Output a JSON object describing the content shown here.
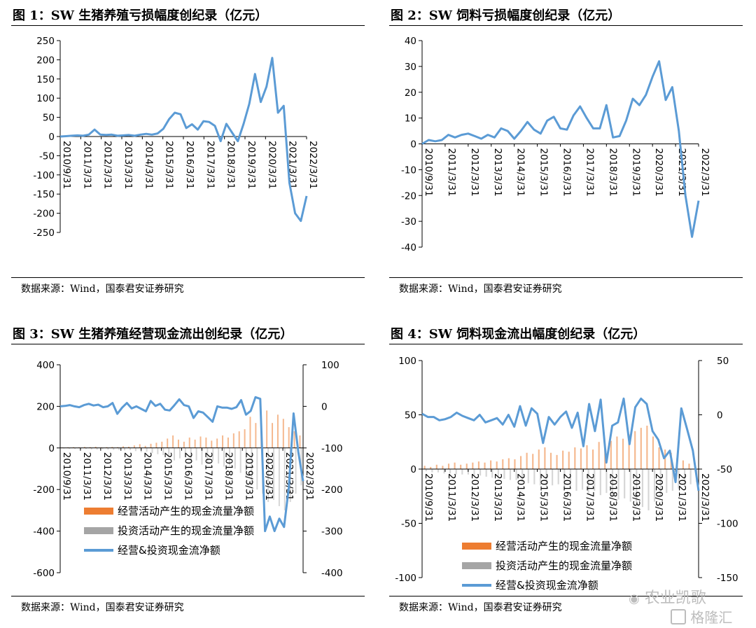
{
  "charts": [
    {
      "title": "图 1：SW 生猪养殖亏损幅度创纪录（亿元）",
      "source": "数据来源：Wind，国泰君安证券研究"
    },
    {
      "title": "图 2：SW 饲料亏损幅度创纪录（亿元）",
      "source": "数据来源：Wind，国泰君安证券研究"
    },
    {
      "title": "图 3：SW 生猪养殖经营现金流出创纪录（亿元）",
      "source": "数据来源：Wind，国泰君安证券研究"
    },
    {
      "title": "图 4：SW 饲料现金流出幅度创纪录（亿元）",
      "source": "数据来源：Wind，国泰君安证券研究"
    }
  ],
  "watermark": {
    "wechat": "农业凯歌",
    "gelonghui": "格隆汇"
  },
  "colors": {
    "line": "#5b9bd5",
    "operating_bar": "#ed7d31",
    "investing_bar": "#a5a5a5",
    "axis": "#000000"
  },
  "chart_data": [
    {
      "type": "line",
      "x_tick_labels": [
        "2010/9/31",
        "2011/3/31",
        "2012/3/31",
        "2013/3/31",
        "2014/3/31",
        "2015/3/31",
        "2016/3/31",
        "2017/3/31",
        "2018/3/31",
        "2019/3/31",
        "2020/3/31",
        "2021/3/31",
        "2022/3/31"
      ],
      "ylim": [
        -250,
        250
      ],
      "yticks": [
        250,
        200,
        150,
        100,
        50,
        0,
        -50,
        -100,
        -150,
        -200,
        -250
      ],
      "series": [
        {
          "values": [
            0,
            1,
            2,
            3,
            2,
            5,
            18,
            5,
            4,
            5,
            2,
            3,
            4,
            2,
            5,
            7,
            5,
            8,
            20,
            45,
            62,
            58,
            22,
            32,
            18,
            40,
            38,
            28,
            -12,
            33,
            10,
            -12,
            33,
            85,
            163,
            90,
            130,
            205,
            62,
            80,
            -120,
            -200,
            -220,
            -155
          ]
        }
      ]
    },
    {
      "type": "line",
      "x_tick_labels": [
        "2010/9/31",
        "2011/3/31",
        "2012/3/31",
        "2013/3/31",
        "2014/3/31",
        "2015/3/31",
        "2016/3/31",
        "2017/3/31",
        "2018/3/31",
        "2019/3/31",
        "2020/3/31",
        "2021/3/31",
        "2022/3/31"
      ],
      "ylim": [
        -40,
        40
      ],
      "yticks": [
        40,
        30,
        20,
        10,
        0,
        -10,
        -20,
        -30,
        -40
      ],
      "series": [
        {
          "values": [
            0,
            1.5,
            1,
            1.5,
            3.5,
            2.5,
            3.5,
            4,
            3,
            2,
            3.5,
            2.5,
            6,
            5,
            2,
            5,
            8.5,
            5.5,
            4,
            9,
            10.5,
            6,
            5.5,
            11,
            14.5,
            10,
            6,
            6,
            15,
            2.5,
            3,
            9,
            17.5,
            15,
            19,
            26,
            32,
            17,
            22,
            5,
            -20,
            -36,
            -22
          ]
        }
      ]
    },
    {
      "type": "bar+line",
      "x_tick_labels": [
        "2010/9/31",
        "2011/3/31",
        "2012/3/31",
        "2013/3/31",
        "2014/3/31",
        "2015/3/31",
        "2016/3/31",
        "2017/3/31",
        "2018/3/31",
        "2019/3/31",
        "2020/3/31",
        "2021/3/31",
        "2022/3/31"
      ],
      "ylim_left": [
        -600,
        400
      ],
      "yticks_left": [
        400,
        200,
        0,
        -200,
        -400,
        -600
      ],
      "ylim_right": [
        -400,
        100
      ],
      "yticks_right": [
        100,
        0,
        -100,
        -200,
        -300,
        -400
      ],
      "legend": [
        "经营活动产生的现金流量净额",
        "投资活动产生的现金流量净额",
        "经营&投资现金流净额"
      ],
      "legend_position": "bottom-left",
      "series": [
        {
          "name": "经营活动产生的现金流量净额",
          "values": [
            2,
            3,
            4,
            3,
            5,
            4,
            6,
            3,
            4,
            5,
            4,
            8,
            6,
            12,
            18,
            10,
            20,
            25,
            30,
            45,
            60,
            40,
            30,
            50,
            40,
            55,
            50,
            35,
            45,
            60,
            50,
            70,
            80,
            90,
            150,
            120,
            100,
            180,
            120,
            160,
            140,
            100,
            80,
            60
          ]
        },
        {
          "name": "投资活动产生的现金流量净额",
          "values": [
            -3,
            -4,
            -5,
            -6,
            -5,
            -7,
            -8,
            -6,
            -8,
            -9,
            -10,
            -12,
            -10,
            -15,
            -20,
            -18,
            -25,
            -30,
            -35,
            -40,
            -60,
            -50,
            -45,
            -70,
            -60,
            -80,
            -70,
            -60,
            -75,
            -90,
            -85,
            -100,
            -120,
            -140,
            -180,
            -200,
            -220,
            -260,
            -250,
            -280,
            -300,
            -260,
            -220,
            -180
          ]
        },
        {
          "name": "经营&投资现金流净额",
          "values": [
            0,
            1,
            3,
            0,
            -2,
            3,
            6,
            2,
            4,
            -2,
            0,
            8,
            -18,
            -3,
            8,
            -5,
            0,
            -6,
            -12,
            13,
            1,
            6,
            -8,
            -10,
            3,
            17,
            3,
            0,
            -28,
            -12,
            -15,
            -26,
            -37,
            0,
            -3,
            -3,
            -6,
            -2,
            15,
            -20,
            -11,
            22,
            18,
            -300,
            -265,
            -300,
            -270,
            -290,
            -195,
            -17,
            -110,
            -180
          ]
        }
      ]
    },
    {
      "type": "bar+line",
      "x_tick_labels": [
        "2010/9/31",
        "2011/3/31",
        "2012/3/31",
        "2013/3/31",
        "2014/3/31",
        "2015/3/31",
        "2016/3/31",
        "2017/3/31",
        "2018/3/31",
        "2019/3/31",
        "2020/3/31",
        "2021/3/31",
        "2022/3/31"
      ],
      "ylim_left": [
        -100,
        100
      ],
      "yticks_left": [
        100,
        50,
        0,
        -50,
        -100
      ],
      "ylim_right": [
        -150,
        50
      ],
      "yticks_right": [
        50,
        0,
        -50,
        -100,
        -150
      ],
      "legend": [
        "经营活动产生的现金流量净额",
        "投资活动产生的现金流量净额",
        "经营&投资现金流净额"
      ],
      "legend_position": "bottom-left",
      "series": [
        {
          "name": "经营活动产生的现金流量净额",
          "values": [
            3,
            2,
            4,
            3,
            5,
            6,
            4,
            5,
            6,
            7,
            6,
            8,
            7,
            9,
            10,
            9,
            12,
            15,
            14,
            18,
            20,
            15,
            13,
            17,
            16,
            20,
            19,
            22,
            18,
            25,
            23,
            26,
            30,
            28,
            32,
            35,
            38,
            40,
            30,
            20,
            18,
            15,
            10,
            8,
            5,
            3
          ]
        },
        {
          "name": "投资活动产生的现金流量净额",
          "values": [
            -2,
            -3,
            -3,
            -4,
            -4,
            -5,
            -5,
            -5,
            -6,
            -6,
            -7,
            -8,
            -8,
            -9,
            -10,
            -10,
            -12,
            -13,
            -14,
            -15,
            -16,
            -15,
            -14,
            -17,
            -16,
            -20,
            -19,
            -22,
            -20,
            -24,
            -22,
            -25,
            -28,
            -27,
            -30,
            -32,
            -35,
            -38,
            -30,
            -25,
            -22,
            -20,
            -18,
            -16,
            -14,
            -12
          ]
        },
        {
          "name": "经营&投资现金流净额",
          "values": [
            1,
            -2,
            -2,
            -5,
            -4,
            -2,
            2,
            -1,
            -3,
            -5,
            0,
            -7,
            -5,
            -3,
            -9,
            0,
            -11,
            8,
            -10,
            6,
            1,
            -26,
            -2,
            -9,
            -2,
            3,
            -12,
            2,
            -29,
            10,
            -15,
            14,
            -44,
            -10,
            -7,
            15,
            -27,
            7,
            15,
            10,
            -15,
            -23,
            -40,
            -33,
            -62,
            6,
            -13,
            -33,
            -70
          ]
        }
      ]
    }
  ]
}
